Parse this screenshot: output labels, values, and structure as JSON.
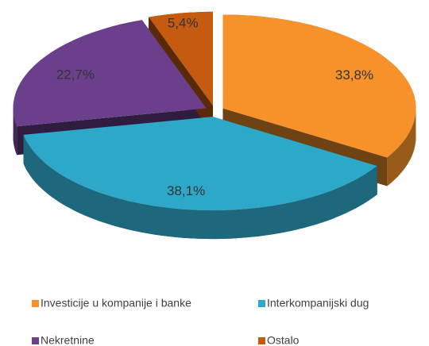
{
  "chart_data": {
    "type": "pie3d",
    "categories": [
      "Investicije u kompanije i banke",
      "Interkompanijski dug",
      "Nekretnine",
      "Ostalo"
    ],
    "values": [
      33.8,
      38.1,
      22.7,
      5.4
    ],
    "value_labels": [
      "33,8%",
      "38,1%",
      "22,7%",
      "5,4%"
    ],
    "colors": [
      "#f7922a",
      "#2ea8c9",
      "#6b3f8c",
      "#c55a11"
    ],
    "legend": "bottom"
  }
}
